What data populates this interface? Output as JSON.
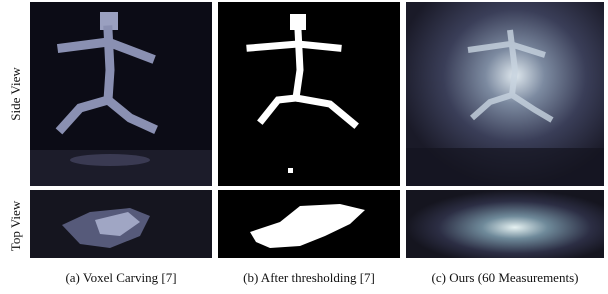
{
  "rows": [
    {
      "label": "Side View"
    },
    {
      "label": "Top View"
    }
  ],
  "captions": [
    "(a) Voxel Carving [7]",
    "(b) After thresholding [7]",
    "(c) Ours (60 Measurements)"
  ]
}
